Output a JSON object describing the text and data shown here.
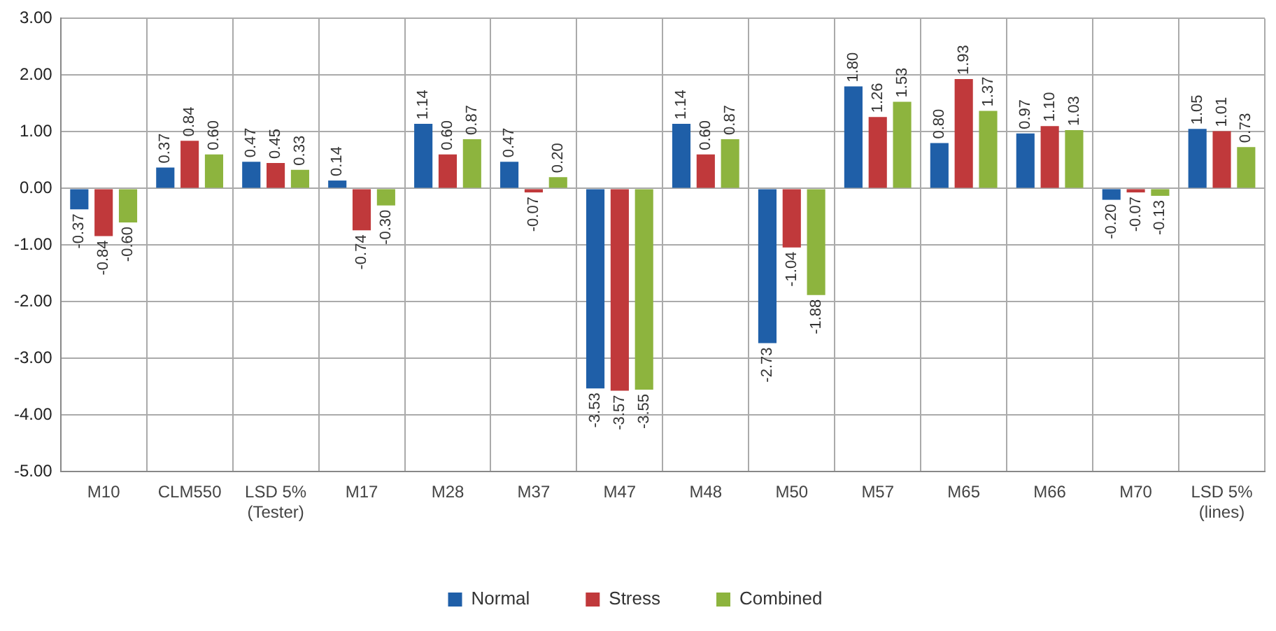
{
  "chart_data": {
    "type": "bar",
    "categories": [
      "M10",
      "CLM550",
      "LSD 5%\n(Tester)",
      "M17",
      "M28",
      "M37",
      "M47",
      "M48",
      "M50",
      "M57",
      "M65",
      "M66",
      "M70",
      "LSD 5%\n(lines)"
    ],
    "series": [
      {
        "name": "Normal",
        "color": "#1f5fa8",
        "values": [
          -0.37,
          0.37,
          0.47,
          0.14,
          1.14,
          0.47,
          -3.53,
          1.14,
          -2.73,
          1.8,
          0.8,
          0.97,
          -0.2,
          1.05
        ],
        "value_labels": [
          "-0.37",
          "0.37",
          "0.47",
          "0.14",
          "1.14",
          "0.47",
          "-3.53",
          "1.14",
          "-2.73",
          "1.80",
          "0.80",
          "0.97",
          "-0.20",
          "1.05"
        ]
      },
      {
        "name": "Stress",
        "color": "#c0393b",
        "values": [
          -0.84,
          0.84,
          0.45,
          -0.74,
          0.6,
          -0.07,
          -3.57,
          0.6,
          -1.04,
          1.26,
          1.93,
          1.1,
          -0.07,
          1.01
        ],
        "value_labels": [
          "-0.84",
          "0.84",
          "0.45",
          "-0.74",
          "0.60",
          "-0.07",
          "-3.57",
          "0.60",
          "-1.04",
          "1.26",
          "1.93",
          "1.10",
          "-0.07",
          "1.01"
        ]
      },
      {
        "name": "Combined",
        "color": "#8db43e",
        "values": [
          -0.6,
          0.6,
          0.33,
          -0.3,
          0.87,
          0.2,
          -3.55,
          0.87,
          -1.88,
          1.53,
          1.37,
          1.03,
          -0.13,
          0.73
        ],
        "value_labels": [
          "-0.60",
          "0.60",
          "0.33",
          "-0.30",
          "0.87",
          "0.20",
          "-3.55",
          "0.87",
          "-1.88",
          "1.53",
          "1.37",
          "1.03",
          "-0.13",
          "0.73"
        ]
      }
    ],
    "ylim": [
      -5,
      3
    ],
    "yticks": [
      {
        "value": -5,
        "label": "-5.00"
      },
      {
        "value": -4,
        "label": "-4.00"
      },
      {
        "value": -3,
        "label": "-3.00"
      },
      {
        "value": -2,
        "label": "-2.00"
      },
      {
        "value": -1,
        "label": "-1.00"
      },
      {
        "value": 0,
        "label": "0.00"
      },
      {
        "value": 1,
        "label": "1.00"
      },
      {
        "value": 2,
        "label": "2.00"
      },
      {
        "value": 3,
        "label": "3.00"
      }
    ],
    "grid": true,
    "legend": "bottom"
  }
}
